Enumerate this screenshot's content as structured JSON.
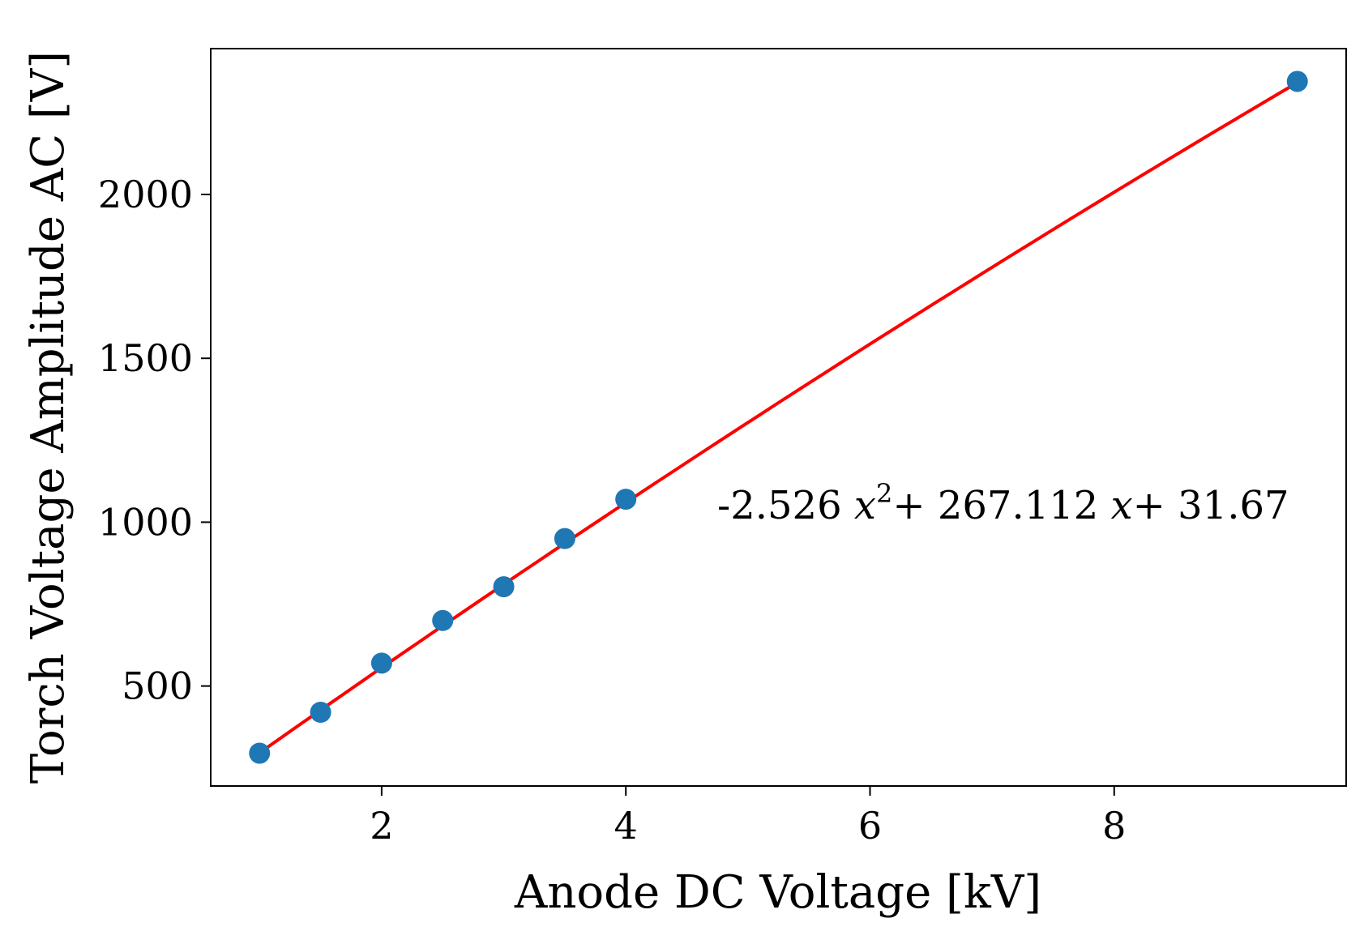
{
  "chart_data": {
    "type": "scatter",
    "title": "",
    "xlabel": "Anode DC Voltage [kV]",
    "ylabel": "Torch Voltage Amplitude AC [V]",
    "xlim": [
      0.6,
      9.9
    ],
    "ylim": [
      195,
      2445
    ],
    "xticks": [
      2,
      4,
      6,
      8
    ],
    "yticks": [
      500,
      1000,
      1500,
      2000
    ],
    "grid": false,
    "series": [
      {
        "type": "scatter",
        "color": "#1f77b4",
        "x": [
          1.0,
          1.5,
          2.0,
          2.5,
          3.0,
          3.5,
          4.0,
          9.5
        ],
        "y": [
          295,
          420,
          570,
          700,
          803,
          950,
          1070,
          2345
        ]
      },
      {
        "type": "line",
        "color": "#ff0000",
        "fit": {
          "a": -2.526,
          "b": 267.112,
          "c": 31.67
        },
        "x_range": [
          1.0,
          9.5
        ]
      }
    ],
    "annotation": {
      "coef2": "-2.526",
      "var": "x",
      "power": "2",
      "plus1": "+ 267.112",
      "plus2": "+ 31.67"
    }
  }
}
